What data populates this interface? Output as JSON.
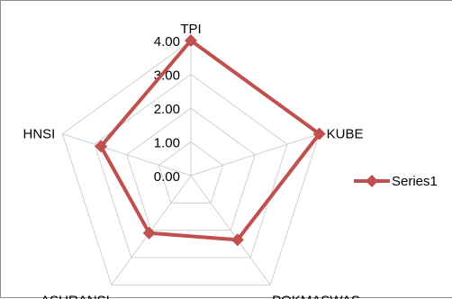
{
  "chart_data": {
    "type": "radar",
    "categories": [
      "TPI",
      "KUBE",
      "POKMASWAS",
      "ASURANSI",
      "HNSI"
    ],
    "series": [
      {
        "name": "Series1",
        "values": [
          4.0,
          4.0,
          2.35,
          2.1,
          2.8
        ],
        "color": "#c0504d"
      }
    ],
    "rlim": [
      0,
      4
    ],
    "tick_values": [
      0,
      1,
      2,
      3,
      4
    ],
    "tick_labels": [
      "0.00",
      "1.00",
      "2.00",
      "3.00",
      "4.00"
    ],
    "grid": true,
    "grid_color": "#d0d0d0",
    "legend_position": "right"
  }
}
